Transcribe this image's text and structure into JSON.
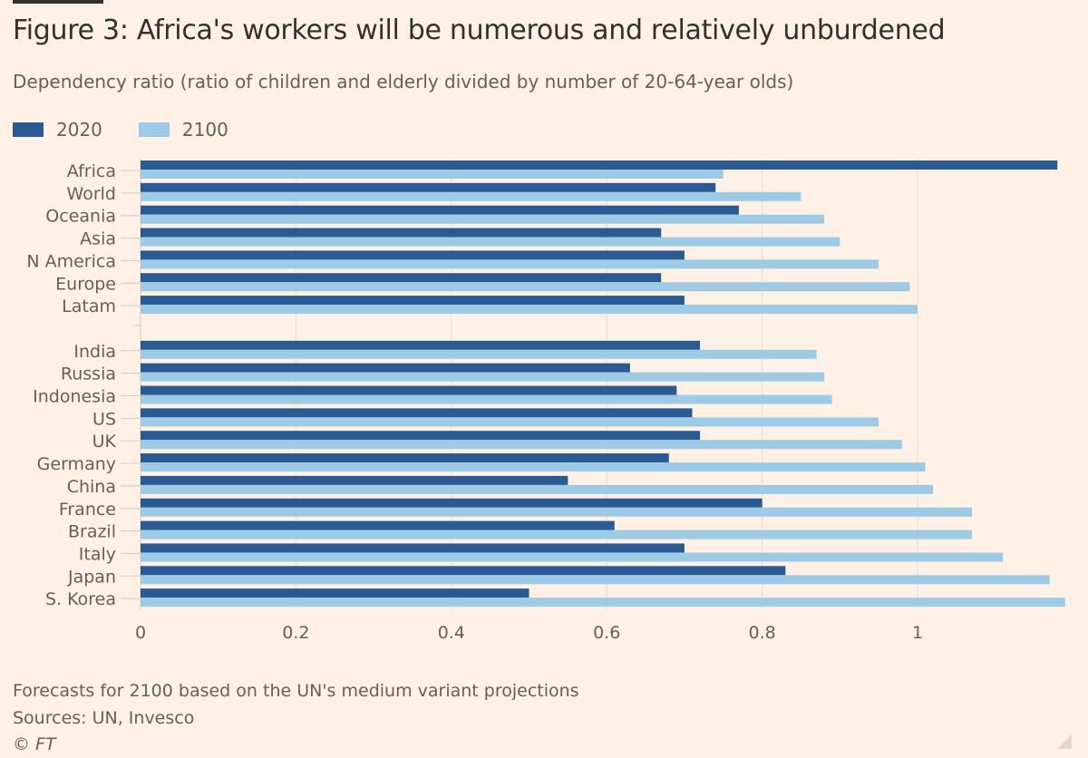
{
  "chart_data": {
    "type": "bar",
    "orientation": "horizontal",
    "title": "Figure 3: Africa's workers will be numerous and relatively unburdened",
    "subtitle": "Dependency ratio (ratio of children and elderly divided by number of 20-64-year olds)",
    "xlabel": "",
    "ylabel": "",
    "xlim": [
      0,
      1.2
    ],
    "xticks": [
      "0",
      "0.2",
      "0.4",
      "0.6",
      "0.8",
      "1"
    ],
    "xtick_values": [
      0,
      0.2,
      0.4,
      0.6,
      0.8,
      1
    ],
    "grid": true,
    "legend_position": "top-left",
    "groups": [
      {
        "categories": [
          "Africa",
          "World",
          "Oceania",
          "Asia",
          "N America",
          "Europe",
          "Latam"
        ]
      },
      {
        "categories": [
          "India",
          "Russia",
          "Indonesia",
          "US",
          "UK",
          "Germany",
          "China",
          "France",
          "Brazil",
          "Italy",
          "Japan",
          "S. Korea"
        ]
      }
    ],
    "categories": [
      "Africa",
      "World",
      "Oceania",
      "Asia",
      "N America",
      "Europe",
      "Latam",
      "India",
      "Russia",
      "Indonesia",
      "US",
      "UK",
      "Germany",
      "China",
      "France",
      "Brazil",
      "Italy",
      "Japan",
      "S. Korea"
    ],
    "series": [
      {
        "name": "2020",
        "color": "#2a5a93",
        "values": [
          1.18,
          0.74,
          0.77,
          0.67,
          0.7,
          0.67,
          0.7,
          0.72,
          0.63,
          0.69,
          0.71,
          0.72,
          0.68,
          0.55,
          0.8,
          0.61,
          0.7,
          0.83,
          0.5
        ]
      },
      {
        "name": "2100",
        "color": "#9dcbe6",
        "values": [
          0.75,
          0.85,
          0.88,
          0.9,
          0.95,
          0.99,
          1.0,
          0.87,
          0.88,
          0.89,
          0.95,
          0.98,
          1.01,
          1.02,
          1.07,
          1.07,
          1.11,
          1.17,
          1.19
        ]
      }
    ]
  },
  "footer": {
    "note": "Forecasts for 2100 based on the UN's medium variant projections",
    "sources": "Sources: UN, Invesco",
    "credit": "© FT"
  }
}
